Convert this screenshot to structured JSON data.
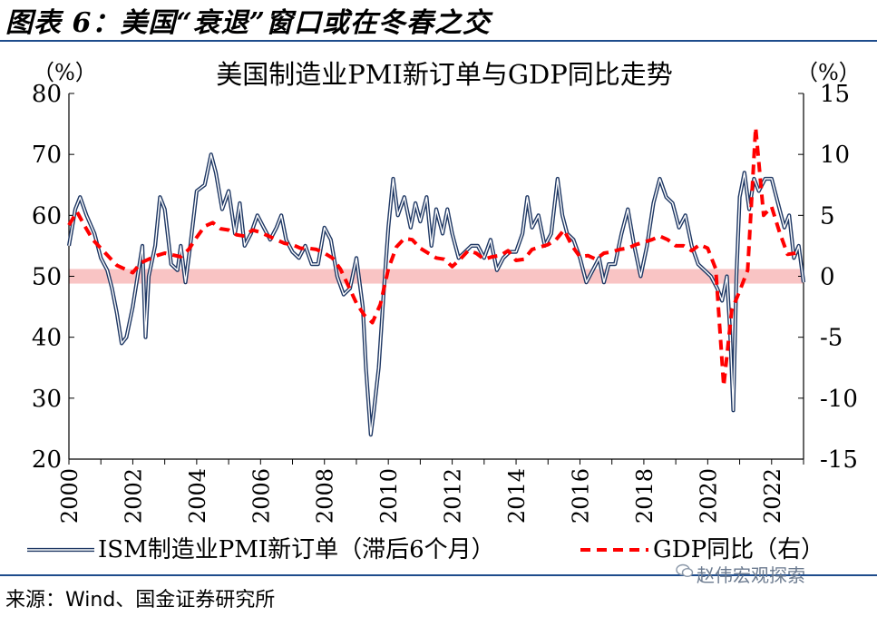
{
  "figure_title": "图表 6：美国“衰退”窗口或在冬春之交",
  "source": "来源：Wind、国金证券研究所",
  "watermark": "赵伟宏观探索",
  "colors": {
    "pmi": "#1f3864",
    "gdp": "#ff0000",
    "band": "#f9c4c4",
    "rule": "#1e4c8c"
  },
  "chart_data": {
    "type": "line",
    "title": "美国制造业PMI新订单与GDP同比走势",
    "left_unit": "（%）",
    "right_unit": "（%）",
    "y_left": {
      "min": 20,
      "max": 80,
      "ticks": [
        20,
        30,
        40,
        50,
        60,
        70,
        80
      ]
    },
    "y_right": {
      "min": -15,
      "max": 15,
      "ticks": [
        -15,
        -10,
        -5,
        0,
        5,
        10,
        15
      ]
    },
    "x": {
      "min": 2000,
      "max": 2023,
      "ticks": [
        "2000",
        "2002",
        "2004",
        "2006",
        "2008",
        "2010",
        "2012",
        "2014",
        "2016",
        "2018",
        "2020",
        "2022"
      ]
    },
    "band": {
      "axis": "left",
      "from": 48.8,
      "to": 51.2
    },
    "series": [
      {
        "name": "ISM制造业PMI新订单（滞后6个月）",
        "axis": "left",
        "style": "double-line",
        "points": [
          [
            2000.0,
            55
          ],
          [
            2000.2,
            61
          ],
          [
            2000.35,
            63
          ],
          [
            2000.55,
            60
          ],
          [
            2000.8,
            57
          ],
          [
            2001.0,
            53
          ],
          [
            2001.2,
            51
          ],
          [
            2001.35,
            48
          ],
          [
            2001.5,
            44
          ],
          [
            2001.65,
            39
          ],
          [
            2001.8,
            40
          ],
          [
            2002.0,
            45
          ],
          [
            2002.15,
            50
          ],
          [
            2002.3,
            55
          ],
          [
            2002.4,
            40
          ],
          [
            2002.5,
            50
          ],
          [
            2002.7,
            55
          ],
          [
            2002.85,
            63
          ],
          [
            2003.0,
            61
          ],
          [
            2003.2,
            52
          ],
          [
            2003.4,
            51
          ],
          [
            2003.5,
            55
          ],
          [
            2003.65,
            49
          ],
          [
            2003.8,
            55
          ],
          [
            2004.0,
            64
          ],
          [
            2004.25,
            65
          ],
          [
            2004.45,
            70
          ],
          [
            2004.6,
            67
          ],
          [
            2004.8,
            61
          ],
          [
            2005.0,
            64
          ],
          [
            2005.2,
            57
          ],
          [
            2005.35,
            62
          ],
          [
            2005.5,
            55
          ],
          [
            2005.7,
            57
          ],
          [
            2005.9,
            60
          ],
          [
            2006.1,
            58
          ],
          [
            2006.3,
            56
          ],
          [
            2006.5,
            58
          ],
          [
            2006.65,
            60
          ],
          [
            2006.8,
            56
          ],
          [
            2007.0,
            54
          ],
          [
            2007.2,
            53
          ],
          [
            2007.4,
            55
          ],
          [
            2007.6,
            52
          ],
          [
            2007.8,
            52
          ],
          [
            2008.0,
            58
          ],
          [
            2008.2,
            56
          ],
          [
            2008.4,
            50
          ],
          [
            2008.6,
            47
          ],
          [
            2008.8,
            48
          ],
          [
            2009.0,
            53
          ],
          [
            2009.2,
            45
          ],
          [
            2009.3,
            35
          ],
          [
            2009.45,
            24
          ],
          [
            2009.55,
            28
          ],
          [
            2009.7,
            35
          ],
          [
            2009.85,
            47
          ],
          [
            2010.0,
            58
          ],
          [
            2010.15,
            66
          ],
          [
            2010.3,
            60
          ],
          [
            2010.5,
            63
          ],
          [
            2010.7,
            58
          ],
          [
            2010.85,
            62
          ],
          [
            2011.0,
            59
          ],
          [
            2011.2,
            63
          ],
          [
            2011.35,
            55
          ],
          [
            2011.5,
            61
          ],
          [
            2011.7,
            57
          ],
          [
            2011.85,
            61
          ],
          [
            2012.0,
            57
          ],
          [
            2012.2,
            53
          ],
          [
            2012.4,
            54
          ],
          [
            2012.6,
            55
          ],
          [
            2012.8,
            55
          ],
          [
            2013.0,
            53
          ],
          [
            2013.2,
            56
          ],
          [
            2013.4,
            51
          ],
          [
            2013.6,
            53
          ],
          [
            2013.8,
            54
          ],
          [
            2014.0,
            54
          ],
          [
            2014.2,
            57
          ],
          [
            2014.35,
            63
          ],
          [
            2014.5,
            58
          ],
          [
            2014.7,
            60
          ],
          [
            2014.9,
            55
          ],
          [
            2015.1,
            57
          ],
          [
            2015.3,
            66
          ],
          [
            2015.45,
            60
          ],
          [
            2015.6,
            57
          ],
          [
            2015.8,
            56
          ],
          [
            2016.0,
            53
          ],
          [
            2016.2,
            49
          ],
          [
            2016.4,
            51
          ],
          [
            2016.6,
            53
          ],
          [
            2016.75,
            49
          ],
          [
            2016.9,
            52
          ],
          [
            2017.1,
            52
          ],
          [
            2017.3,
            57
          ],
          [
            2017.5,
            61
          ],
          [
            2017.7,
            55
          ],
          [
            2017.9,
            50
          ],
          [
            2018.1,
            55
          ],
          [
            2018.3,
            62
          ],
          [
            2018.5,
            66
          ],
          [
            2018.7,
            63
          ],
          [
            2018.9,
            62
          ],
          [
            2019.1,
            58
          ],
          [
            2019.3,
            60
          ],
          [
            2019.5,
            55
          ],
          [
            2019.7,
            52
          ],
          [
            2019.9,
            51
          ],
          [
            2020.1,
            50
          ],
          [
            2020.3,
            48
          ],
          [
            2020.45,
            46
          ],
          [
            2020.6,
            50
          ],
          [
            2020.7,
            41
          ],
          [
            2020.8,
            28
          ],
          [
            2020.9,
            50
          ],
          [
            2021.0,
            63
          ],
          [
            2021.15,
            67
          ],
          [
            2021.3,
            61
          ],
          [
            2021.45,
            66
          ],
          [
            2021.6,
            64
          ],
          [
            2021.8,
            66
          ],
          [
            2022.0,
            66
          ],
          [
            2022.2,
            62
          ],
          [
            2022.4,
            58
          ],
          [
            2022.55,
            60
          ],
          [
            2022.7,
            53
          ],
          [
            2022.85,
            55
          ],
          [
            2023.0,
            49
          ]
        ]
      },
      {
        "name": "GDP同比（右）",
        "axis": "right",
        "style": "dashed",
        "points": [
          [
            2000.0,
            4.2
          ],
          [
            2000.25,
            5.3
          ],
          [
            2000.5,
            4.1
          ],
          [
            2000.75,
            3.0
          ],
          [
            2001.0,
            2.3
          ],
          [
            2001.5,
            0.9
          ],
          [
            2002.0,
            0.3
          ],
          [
            2002.25,
            1.1
          ],
          [
            2002.5,
            1.4
          ],
          [
            2002.75,
            1.7
          ],
          [
            2003.0,
            1.9
          ],
          [
            2003.5,
            1.6
          ],
          [
            2003.75,
            2.2
          ],
          [
            2004.0,
            3.2
          ],
          [
            2004.25,
            4.1
          ],
          [
            2004.5,
            4.4
          ],
          [
            2004.75,
            3.9
          ],
          [
            2005.0,
            3.8
          ],
          [
            2005.25,
            3.4
          ],
          [
            2005.5,
            3.3
          ],
          [
            2005.75,
            3.8
          ],
          [
            2006.0,
            3.6
          ],
          [
            2006.5,
            3.0
          ],
          [
            2006.75,
            2.7
          ],
          [
            2007.0,
            2.6
          ],
          [
            2007.25,
            2.3
          ],
          [
            2007.5,
            2.3
          ],
          [
            2007.75,
            2.2
          ],
          [
            2008.0,
            1.9
          ],
          [
            2008.25,
            1.5
          ],
          [
            2008.5,
            0.6
          ],
          [
            2008.75,
            -0.8
          ],
          [
            2009.0,
            -2.2
          ],
          [
            2009.25,
            -3.2
          ],
          [
            2009.5,
            -3.8
          ],
          [
            2009.75,
            -2.3
          ],
          [
            2010.0,
            0.6
          ],
          [
            2010.25,
            2.4
          ],
          [
            2010.5,
            3.1
          ],
          [
            2010.75,
            3.0
          ],
          [
            2011.0,
            2.3
          ],
          [
            2011.25,
            1.9
          ],
          [
            2011.5,
            1.5
          ],
          [
            2011.75,
            1.4
          ],
          [
            2012.0,
            0.8
          ],
          [
            2012.25,
            1.4
          ],
          [
            2012.5,
            2.1
          ],
          [
            2012.75,
            1.9
          ],
          [
            2013.0,
            1.4
          ],
          [
            2013.25,
            1.6
          ],
          [
            2013.5,
            1.7
          ],
          [
            2013.75,
            2.1
          ],
          [
            2014.0,
            1.3
          ],
          [
            2014.25,
            1.4
          ],
          [
            2014.5,
            2.2
          ],
          [
            2014.75,
            2.4
          ],
          [
            2015.0,
            2.6
          ],
          [
            2015.25,
            3.0
          ],
          [
            2015.5,
            3.8
          ],
          [
            2015.75,
            2.5
          ],
          [
            2016.0,
            1.6
          ],
          [
            2016.25,
            1.7
          ],
          [
            2016.5,
            1.4
          ],
          [
            2016.75,
            1.9
          ],
          [
            2017.0,
            2.0
          ],
          [
            2017.25,
            2.2
          ],
          [
            2017.5,
            2.3
          ],
          [
            2017.75,
            2.6
          ],
          [
            2018.0,
            2.8
          ],
          [
            2018.25,
            3.0
          ],
          [
            2018.5,
            3.3
          ],
          [
            2018.75,
            3.0
          ],
          [
            2019.0,
            2.5
          ],
          [
            2019.25,
            2.5
          ],
          [
            2019.5,
            2.1
          ],
          [
            2019.75,
            2.6
          ],
          [
            2020.0,
            2.3
          ],
          [
            2020.25,
            0.6
          ],
          [
            2020.5,
            -9.0
          ],
          [
            2020.75,
            -2.8
          ],
          [
            2021.0,
            -1.2
          ],
          [
            2021.25,
            0.5
          ],
          [
            2021.5,
            12.2
          ],
          [
            2021.75,
            5.0
          ],
          [
            2022.0,
            5.7
          ],
          [
            2022.25,
            3.6
          ],
          [
            2022.5,
            1.8
          ],
          [
            2022.75,
            1.9
          ]
        ]
      }
    ],
    "legend": [
      {
        "label": "ISM制造业PMI新订单（滞后6个月）",
        "series": 0
      },
      {
        "label": "GDP同比（右）",
        "series": 1
      }
    ],
    "legend_position": "bottom"
  }
}
